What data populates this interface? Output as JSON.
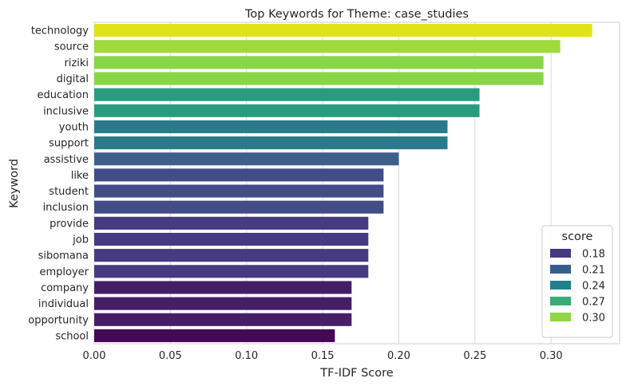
{
  "chart_data": {
    "type": "bar",
    "orientation": "horizontal",
    "title": "Top Keywords for Theme: case_studies",
    "xlabel": "TF-IDF Score",
    "ylabel": "Keyword",
    "xlim": [
      0.0,
      0.345
    ],
    "xticks": [
      "0.00",
      "0.05",
      "0.10",
      "0.15",
      "0.20",
      "0.25",
      "0.30"
    ],
    "grid": "x",
    "categories": [
      "technology",
      "source",
      "riziki",
      "digital",
      "education",
      "inclusive",
      "youth",
      "support",
      "assistive",
      "like",
      "student",
      "inclusion",
      "provide",
      "job",
      "sibomana",
      "employer",
      "company",
      "individual",
      "opportunity",
      "school"
    ],
    "values": [
      0.327,
      0.306,
      0.295,
      0.295,
      0.253,
      0.253,
      0.232,
      0.232,
      0.2,
      0.19,
      0.19,
      0.19,
      0.18,
      0.18,
      0.18,
      0.18,
      0.169,
      0.169,
      0.169,
      0.158
    ],
    "colors": [
      "#e2e218",
      "#a0d93b",
      "#89d548",
      "#89d548",
      "#2b9b80",
      "#2b9b80",
      "#2a7a8c",
      "#2a7a8c",
      "#3f5f8b",
      "#424c86",
      "#424c86",
      "#424c86",
      "#463a80",
      "#463a80",
      "#463a80",
      "#463a80",
      "#461e68",
      "#461e68",
      "#461e68",
      "#440855"
    ],
    "legend": {
      "title": "score",
      "position": "lower-right",
      "entries": [
        {
          "label": "0.18",
          "color": "#453781"
        },
        {
          "label": "0.21",
          "color": "#365e8c"
        },
        {
          "label": "0.24",
          "color": "#20808c"
        },
        {
          "label": "0.27",
          "color": "#3aaa77"
        },
        {
          "label": "0.30",
          "color": "#8fd645"
        }
      ]
    }
  }
}
